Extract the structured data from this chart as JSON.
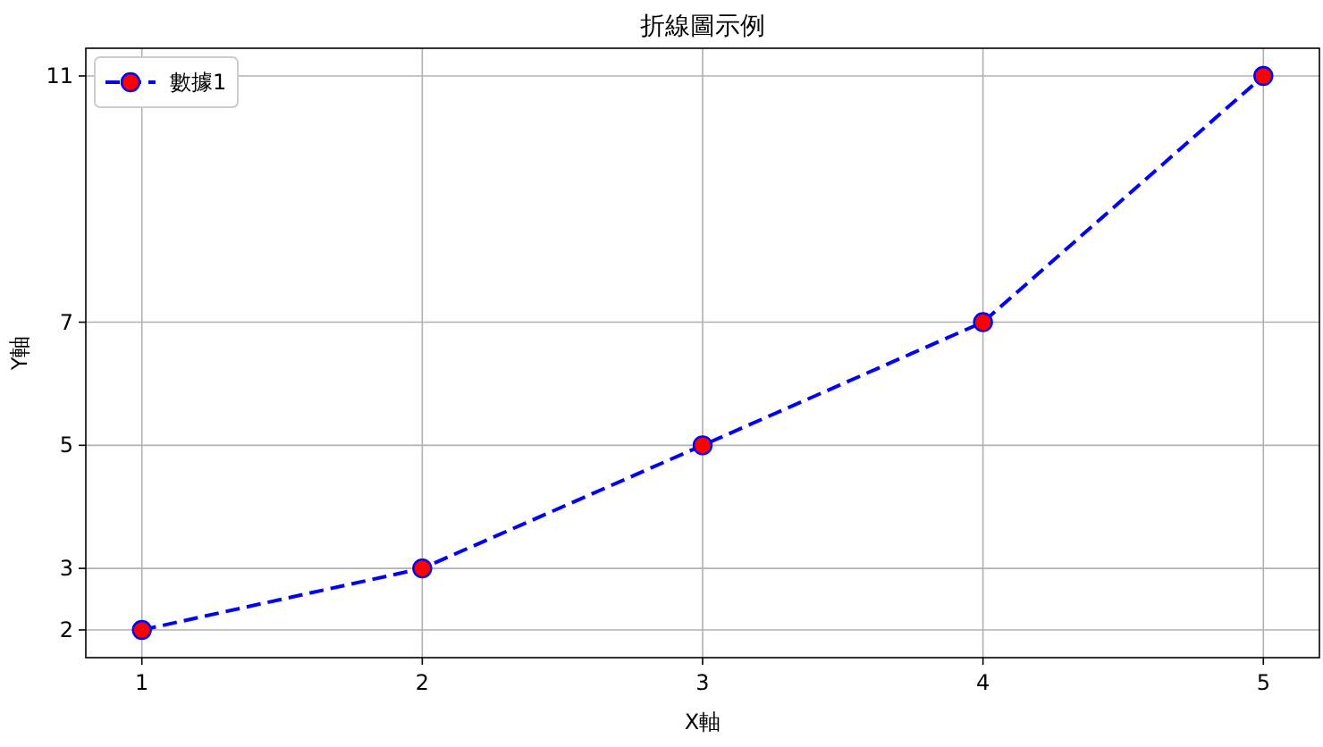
{
  "chart_data": {
    "type": "line",
    "title": "折線圖示例",
    "xlabel": "X軸",
    "ylabel": "Y軸",
    "x": [
      1,
      2,
      3,
      4,
      5
    ],
    "series": [
      {
        "name": "數據1",
        "color": "#0000ff",
        "colors": [
          "#ff0000",
          "#ff0000",
          "#ff0000",
          "#ff0000",
          "#ff0000"
        ],
        "values": [
          2,
          3,
          5,
          7,
          11
        ]
      }
    ],
    "xlim": [
      0.8,
      5.2
    ],
    "ylim": [
      1.55,
      11.45
    ],
    "xticks": [
      1,
      2,
      3,
      4,
      5
    ],
    "yticks": [
      2,
      3,
      5,
      7,
      11
    ],
    "grid": true,
    "legend": "top left",
    "marker": "circle",
    "line_style": "dashed"
  }
}
